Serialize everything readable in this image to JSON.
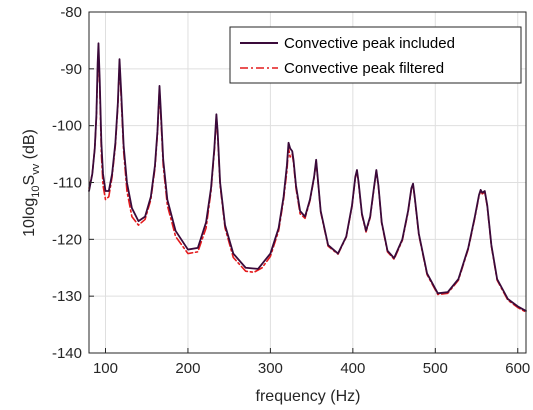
{
  "chart_data": {
    "type": "line",
    "xlabel": "frequency (Hz)",
    "ylabel": {
      "prefix": "10log",
      "prefix_sub": "10",
      "main": "S",
      "main_sub": "vv",
      "suffix": " (dB)"
    },
    "xlim": [
      80,
      610
    ],
    "ylim": [
      -140,
      -80
    ],
    "xticks": [
      100,
      200,
      300,
      400,
      500,
      600
    ],
    "yticks": [
      -140,
      -130,
      -120,
      -110,
      -100,
      -90,
      -80
    ],
    "x_tick_labels": [
      "100",
      "200",
      "300",
      "400",
      "500",
      "600"
    ],
    "y_tick_labels": [
      "-140",
      "-130",
      "-120",
      "-110",
      "-100",
      "-90",
      "-80"
    ],
    "grid": true,
    "legend_position": "top-right",
    "series": [
      {
        "name": "Convective peak included",
        "color": "#3a0a3a",
        "style": "solid",
        "points": [
          [
            80,
            -111.5
          ],
          [
            84,
            -108.5
          ],
          [
            87,
            -104
          ],
          [
            89,
            -98
          ],
          [
            90.5,
            -89
          ],
          [
            91.5,
            -85.5
          ],
          [
            93,
            -92
          ],
          [
            95,
            -103
          ],
          [
            97,
            -108.5
          ],
          [
            100,
            -111.5
          ],
          [
            104,
            -111.5
          ],
          [
            108,
            -108.5
          ],
          [
            112,
            -103
          ],
          [
            115,
            -96
          ],
          [
            117,
            -88.3
          ],
          [
            119,
            -94
          ],
          [
            122,
            -103.5
          ],
          [
            126,
            -110
          ],
          [
            132,
            -114.5
          ],
          [
            140,
            -116.8
          ],
          [
            148,
            -116
          ],
          [
            155,
            -112.5
          ],
          [
            160,
            -107
          ],
          [
            163,
            -101
          ],
          [
            165.5,
            -93
          ],
          [
            167,
            -97
          ],
          [
            170,
            -106
          ],
          [
            175,
            -113
          ],
          [
            185,
            -118.5
          ],
          [
            200,
            -121.8
          ],
          [
            212,
            -121.5
          ],
          [
            222,
            -117
          ],
          [
            228,
            -111
          ],
          [
            232,
            -104
          ],
          [
            234.5,
            -98
          ],
          [
            236,
            -101
          ],
          [
            239,
            -110
          ],
          [
            245,
            -117.5
          ],
          [
            255,
            -122.5
          ],
          [
            270,
            -125
          ],
          [
            285,
            -125.2
          ],
          [
            300,
            -122.5
          ],
          [
            310,
            -118
          ],
          [
            316,
            -112.5
          ],
          [
            320,
            -107
          ],
          [
            322,
            -103
          ],
          [
            324,
            -104
          ],
          [
            326.5,
            -104.5
          ],
          [
            328,
            -106
          ],
          [
            331,
            -110.5
          ],
          [
            336,
            -115
          ],
          [
            342,
            -116
          ],
          [
            348,
            -113
          ],
          [
            353,
            -109
          ],
          [
            355.5,
            -106
          ],
          [
            357,
            -108.5
          ],
          [
            361,
            -115
          ],
          [
            370,
            -121
          ],
          [
            382,
            -122.5
          ],
          [
            392,
            -119.5
          ],
          [
            399,
            -114
          ],
          [
            403,
            -109
          ],
          [
            405,
            -107.8
          ],
          [
            407,
            -110
          ],
          [
            411,
            -115.5
          ],
          [
            416,
            -118.5
          ],
          [
            421,
            -116
          ],
          [
            425.5,
            -111
          ],
          [
            428.5,
            -107.8
          ],
          [
            431,
            -110.5
          ],
          [
            435,
            -117
          ],
          [
            442,
            -122
          ],
          [
            450,
            -123.3
          ],
          [
            460,
            -120
          ],
          [
            467,
            -115
          ],
          [
            471,
            -111
          ],
          [
            473,
            -110.2
          ],
          [
            475,
            -112.5
          ],
          [
            480,
            -119
          ],
          [
            490,
            -126
          ],
          [
            503,
            -129.5
          ],
          [
            515,
            -129.3
          ],
          [
            528,
            -127
          ],
          [
            540,
            -121.5
          ],
          [
            548,
            -116
          ],
          [
            553,
            -112.2
          ],
          [
            555,
            -111.3
          ],
          [
            557,
            -111.8
          ],
          [
            560,
            -111.5
          ],
          [
            563,
            -114
          ],
          [
            568,
            -121
          ],
          [
            575,
            -127
          ],
          [
            588,
            -130.5
          ],
          [
            600,
            -131.8
          ],
          [
            610,
            -132.6
          ]
        ]
      },
      {
        "name": "Convective peak filtered",
        "color": "#e41a1c",
        "style": "dashdot",
        "points": [
          [
            80,
            -111
          ],
          [
            84,
            -108.5
          ],
          [
            87,
            -104
          ],
          [
            89,
            -98.5
          ],
          [
            90.5,
            -90
          ],
          [
            91.5,
            -87
          ],
          [
            93,
            -93
          ],
          [
            95,
            -105
          ],
          [
            97,
            -110.5
          ],
          [
            100,
            -113
          ],
          [
            104,
            -112.5
          ],
          [
            108,
            -109
          ],
          [
            112,
            -103.5
          ],
          [
            115,
            -96.5
          ],
          [
            117,
            -89
          ],
          [
            119,
            -95
          ],
          [
            122,
            -104.5
          ],
          [
            126,
            -111.5
          ],
          [
            132,
            -116
          ],
          [
            140,
            -117.5
          ],
          [
            148,
            -116.5
          ],
          [
            155,
            -113
          ],
          [
            160,
            -107.5
          ],
          [
            163,
            -101.5
          ],
          [
            165.5,
            -93.5
          ],
          [
            167,
            -98
          ],
          [
            170,
            -107
          ],
          [
            175,
            -114
          ],
          [
            185,
            -119.5
          ],
          [
            200,
            -122.5
          ],
          [
            212,
            -122.2
          ],
          [
            222,
            -118
          ],
          [
            228,
            -111.5
          ],
          [
            232,
            -104.5
          ],
          [
            234.5,
            -98.5
          ],
          [
            236,
            -101.5
          ],
          [
            239,
            -110.5
          ],
          [
            245,
            -118
          ],
          [
            255,
            -123.2
          ],
          [
            270,
            -125.6
          ],
          [
            280,
            -125.8
          ],
          [
            290,
            -125
          ],
          [
            300,
            -123
          ],
          [
            310,
            -118.5
          ],
          [
            316,
            -113
          ],
          [
            320,
            -108
          ],
          [
            322,
            -104
          ],
          [
            324,
            -105.5
          ],
          [
            326.5,
            -105
          ],
          [
            328,
            -106.5
          ],
          [
            331,
            -111
          ],
          [
            336,
            -115.5
          ],
          [
            342,
            -116.3
          ],
          [
            348,
            -113.2
          ],
          [
            353,
            -109.2
          ],
          [
            355.5,
            -106.2
          ],
          [
            357,
            -108.7
          ],
          [
            361,
            -115.2
          ],
          [
            370,
            -121.2
          ],
          [
            382,
            -122.6
          ],
          [
            392,
            -119.6
          ],
          [
            399,
            -114.2
          ],
          [
            403,
            -109.2
          ],
          [
            405,
            -108
          ],
          [
            407,
            -110.2
          ],
          [
            411,
            -115.7
          ],
          [
            416,
            -118.7
          ],
          [
            421,
            -116.2
          ],
          [
            425.5,
            -111.2
          ],
          [
            428.5,
            -108
          ],
          [
            431,
            -110.7
          ],
          [
            435,
            -117.2
          ],
          [
            442,
            -122.2
          ],
          [
            450,
            -123.5
          ],
          [
            460,
            -120.2
          ],
          [
            467,
            -115.2
          ],
          [
            471,
            -111.2
          ],
          [
            473,
            -110.4
          ],
          [
            475,
            -112.7
          ],
          [
            480,
            -119.2
          ],
          [
            490,
            -126.2
          ],
          [
            503,
            -129.7
          ],
          [
            515,
            -129.5
          ],
          [
            528,
            -127.2
          ],
          [
            540,
            -121.7
          ],
          [
            548,
            -116.2
          ],
          [
            553,
            -112.4
          ],
          [
            555,
            -111.5
          ],
          [
            557,
            -112
          ],
          [
            560,
            -111.7
          ],
          [
            563,
            -114.2
          ],
          [
            568,
            -121.2
          ],
          [
            575,
            -127.2
          ],
          [
            588,
            -130.7
          ],
          [
            600,
            -132
          ],
          [
            610,
            -132.8
          ]
        ]
      }
    ]
  }
}
